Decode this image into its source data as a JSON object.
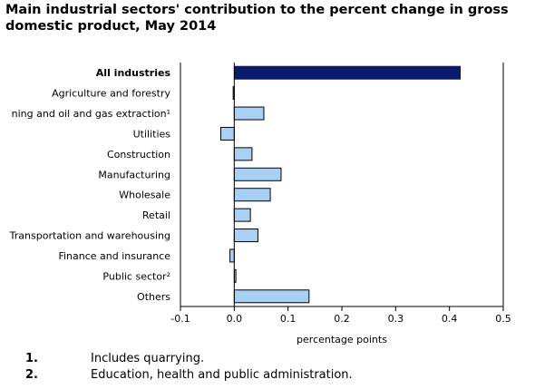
{
  "chart_data": {
    "type": "bar",
    "orientation": "horizontal",
    "title": "Main industrial sectors' contribution to the percent change in gross domestic product, May 2014",
    "xlabel": "percentage points",
    "ylabel": "",
    "xlim": [
      -0.1,
      0.5
    ],
    "xticks": [
      "-0.1",
      "0.0",
      "0.1",
      "0.2",
      "0.3",
      "0.4",
      "0.5"
    ],
    "xtick_values": [
      -0.1,
      0.0,
      0.1,
      0.2,
      0.3,
      0.4,
      0.5
    ],
    "grid": false,
    "categories": [
      "All industries",
      "Agriculture and forestry",
      "ning and oil and gas extraction¹",
      "Utilities",
      "Construction",
      "Manufacturing",
      "Wholesale",
      "Retail",
      "Transportation and warehousing",
      "Finance and insurance",
      "Public sector²",
      "Others"
    ],
    "values": [
      0.42,
      -0.002,
      0.055,
      -0.025,
      0.033,
      0.087,
      0.067,
      0.03,
      0.044,
      -0.008,
      0.003,
      0.139
    ],
    "highlight_index": 0,
    "colors": {
      "highlight": "#0b1a6b",
      "bar": "#a8d0f4",
      "bar_edge": "#000000",
      "axis": "#000000"
    }
  },
  "footnotes": [
    {
      "num": "1.",
      "text": "Includes quarrying."
    },
    {
      "num": "2.",
      "text": "Education, health and public administration."
    }
  ]
}
